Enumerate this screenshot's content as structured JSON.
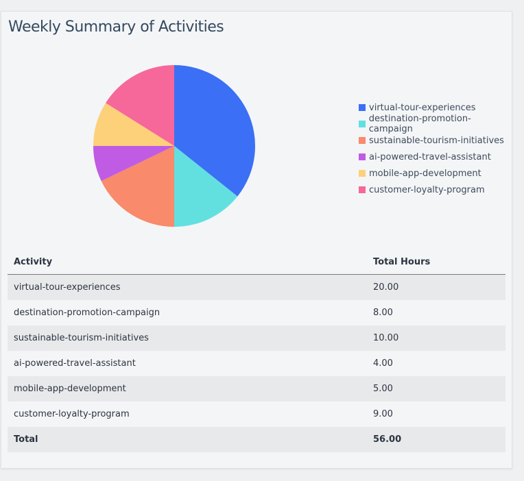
{
  "title": "Weekly Summary of Activities",
  "chart_data": {
    "type": "pie",
    "title": "",
    "categories": [
      "virtual-tour-experiences",
      "destination-promotion-campaign",
      "sustainable-tourism-initiatives",
      "ai-powered-travel-assistant",
      "mobile-app-development",
      "customer-loyalty-program"
    ],
    "values": [
      20,
      8,
      10,
      4,
      5,
      9
    ],
    "colors": [
      "#3b6ff5",
      "#62e0e0",
      "#f98a6b",
      "#c05ce3",
      "#fdd07a",
      "#f6679a"
    ],
    "legend_placement": "right"
  },
  "table": {
    "headers": [
      "Activity",
      "Total Hours"
    ],
    "rows": [
      [
        "virtual-tour-experiences",
        "20.00"
      ],
      [
        "destination-promotion-campaign",
        "8.00"
      ],
      [
        "sustainable-tourism-initiatives",
        "10.00"
      ],
      [
        "ai-powered-travel-assistant",
        "4.00"
      ],
      [
        "mobile-app-development",
        "5.00"
      ],
      [
        "customer-loyalty-program",
        "9.00"
      ]
    ],
    "total": [
      "Total",
      "56.00"
    ]
  }
}
